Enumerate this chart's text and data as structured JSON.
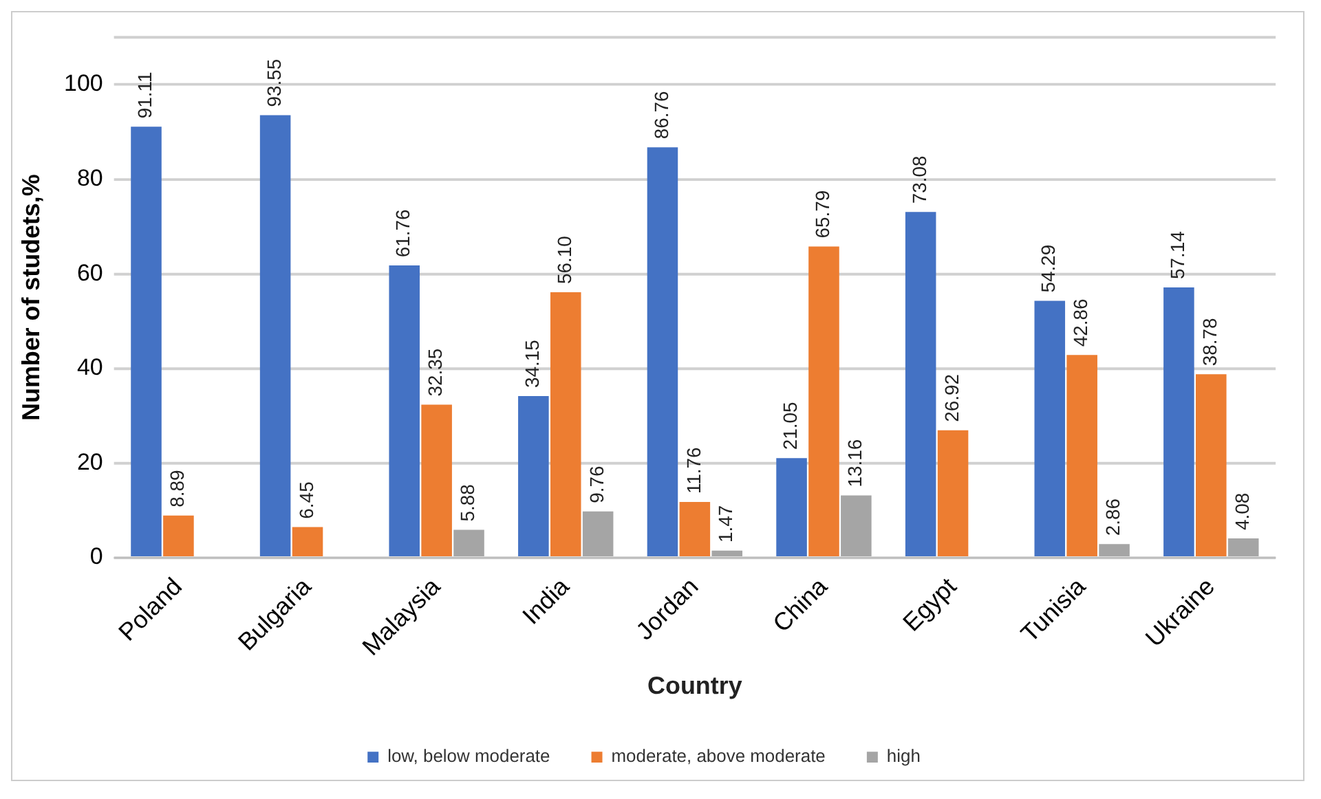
{
  "chart_data": {
    "type": "bar",
    "xlabel": "Country",
    "ylabel": "Number of studets,%",
    "categories": [
      "Poland",
      "Bulgaria",
      "Malaysia",
      "India",
      "Jordan",
      "China",
      "Egypt",
      "Tunisia",
      "Ukraine"
    ],
    "series": [
      {
        "name": "low, below moderate",
        "color": "#4472c4",
        "values": [
          91.11,
          93.55,
          61.76,
          34.15,
          86.76,
          21.05,
          73.08,
          54.29,
          57.14
        ],
        "value_labels": [
          "91.11",
          "93.55",
          "61.76",
          "34.15",
          "86.76",
          "21.05",
          "73.08",
          "54.29",
          "57.14"
        ]
      },
      {
        "name": "moderate, above moderate",
        "color": "#ed7d31",
        "values": [
          8.89,
          6.45,
          32.35,
          56.1,
          11.76,
          65.79,
          26.92,
          42.86,
          38.78
        ],
        "value_labels": [
          "8.89",
          "6.45",
          "32.35",
          "56.10",
          "11.76",
          "65.79",
          "26.92",
          "42.86",
          "38.78"
        ]
      },
      {
        "name": "high",
        "color": "#a5a5a5",
        "values": [
          null,
          null,
          5.88,
          9.76,
          1.47,
          13.16,
          null,
          2.86,
          4.08
        ],
        "value_labels": [
          null,
          null,
          "5.88",
          "9.76",
          "1.47",
          "13.16",
          null,
          "2.86",
          "4.08"
        ]
      }
    ],
    "ylim": [
      0,
      110
    ],
    "yticks": [
      0,
      20,
      40,
      60,
      80,
      100
    ],
    "grid": "y",
    "legend": "bottom"
  }
}
